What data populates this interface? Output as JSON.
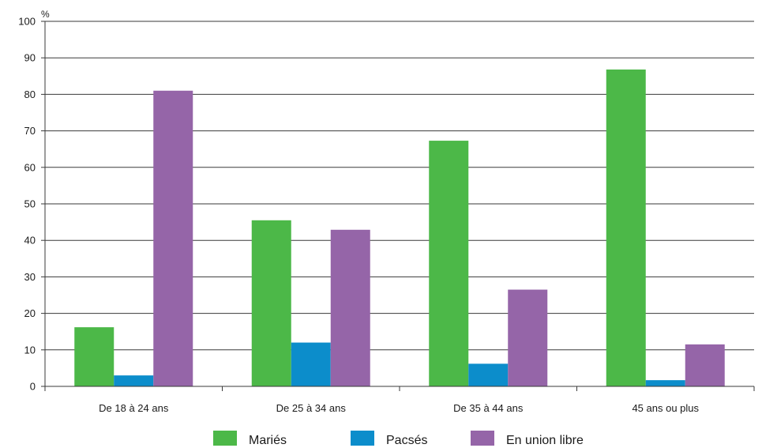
{
  "chart_data": {
    "type": "bar",
    "unit_label": "%",
    "categories": [
      "De 18 à 24 ans",
      "De 25 à 34 ans",
      "De 35 à 44 ans",
      "45 ans ou plus"
    ],
    "series": [
      {
        "name": "Mariés",
        "color": "#4cb848",
        "values": [
          16.2,
          45.5,
          67.3,
          86.8
        ]
      },
      {
        "name": "Pacsés",
        "color": "#0c8dcb",
        "values": [
          3.0,
          12.0,
          6.2,
          1.7
        ]
      },
      {
        "name": "En union libre",
        "color": "#9565a8",
        "values": [
          81.0,
          42.9,
          26.5,
          11.5
        ]
      }
    ],
    "ylim": [
      0,
      100
    ],
    "yticks": [
      0,
      10,
      20,
      30,
      40,
      50,
      60,
      70,
      80,
      90,
      100
    ],
    "grid": true,
    "legend_position": "bottom"
  }
}
